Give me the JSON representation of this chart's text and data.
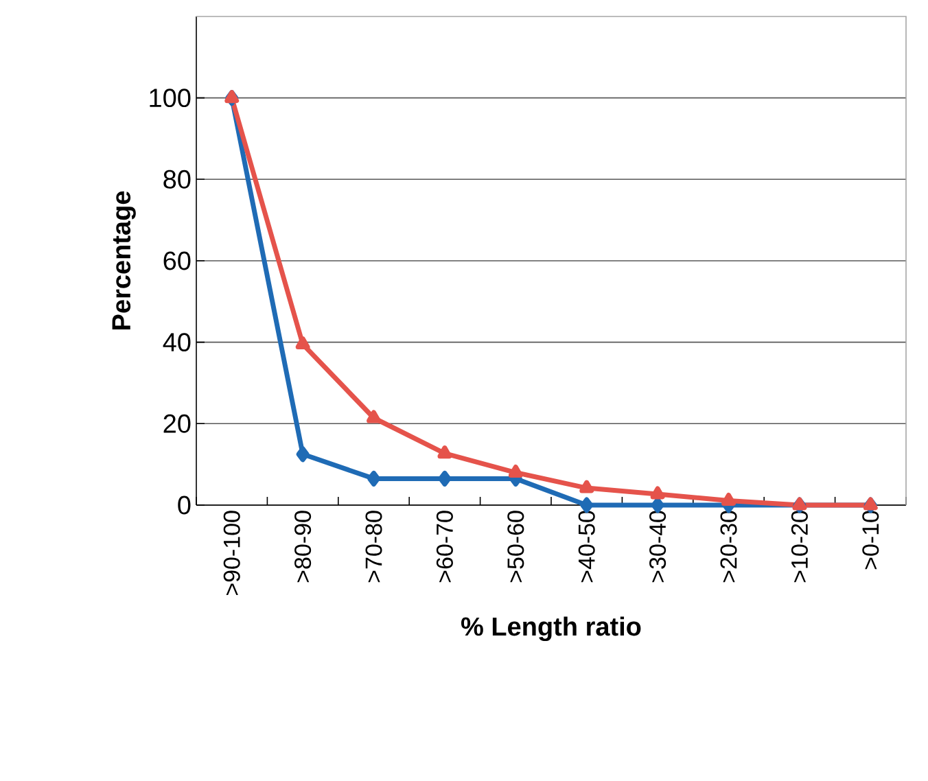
{
  "chart_data": {
    "type": "line",
    "xlabel": "% Length ratio",
    "ylabel": "Percentage",
    "categories": [
      ">90-100",
      ">80-90",
      ">70-80",
      ">60-70",
      ">50-60",
      ">40-50",
      ">30-40",
      ">20-30",
      ">10-20",
      ">0-10"
    ],
    "series": [
      {
        "color": "#1f6bb5",
        "marker": "diamond",
        "values": [
          100,
          12.5,
          6.5,
          6.5,
          6.5,
          0,
          0,
          0,
          0,
          0
        ]
      },
      {
        "color": "#e5534b",
        "marker": "triangle",
        "values": [
          100,
          39.5,
          21.4,
          12.7,
          8.0,
          4.2,
          2.7,
          1.1,
          0,
          0
        ]
      }
    ],
    "ylim": [
      0,
      120
    ],
    "yticks": [
      0,
      20,
      40,
      60,
      80,
      100
    ],
    "grid": "y",
    "line_style": "solid"
  }
}
